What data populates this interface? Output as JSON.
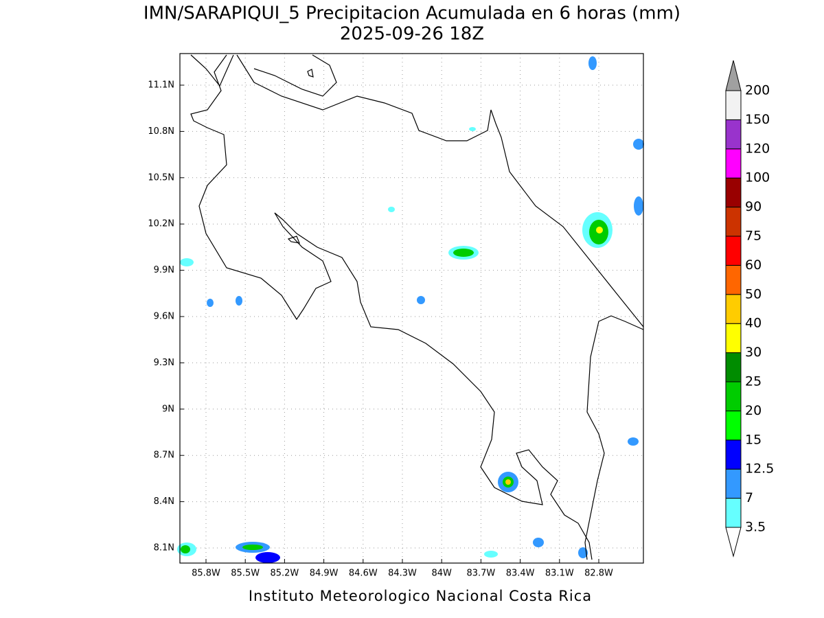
{
  "title": "IMN/SARAPIQUI_5 Precipitacion Acumulada en 6 horas (mm)",
  "subtitle": "2025-09-26 18Z",
  "map": {
    "xticks": [
      "85.8W",
      "85.5W",
      "85.2W",
      "84.9W",
      "84.6W",
      "84.3W",
      "84W",
      "83.7W",
      "83.4W",
      "83.1W",
      "82.8W"
    ],
    "yticks": [
      "11.1N",
      "10.8N",
      "10.5N",
      "10.2N",
      "9.9N",
      "9.6N",
      "9.3N",
      "9N",
      "8.7N",
      "8.4N",
      "8.1N"
    ]
  },
  "colorbar": {
    "levels": [
      3.5,
      7,
      12.5,
      15,
      20,
      25,
      30,
      40,
      50,
      60,
      75,
      90,
      100,
      120,
      150,
      200
    ],
    "colors": [
      "#66ffff",
      "#3399ff",
      "#0000ff",
      "#00ff00",
      "#00cc00",
      "#008c00",
      "#ffff00",
      "#ffcc00",
      "#ff6600",
      "#ff0000",
      "#cc3300",
      "#990000",
      "#ff00ff",
      "#9933cc",
      "#f2f2f2"
    ],
    "under_color": "#ffffff",
    "over_color": "#a0a0a0"
  },
  "footer": "Instituto Meteorologico Nacional Costa Rica"
}
